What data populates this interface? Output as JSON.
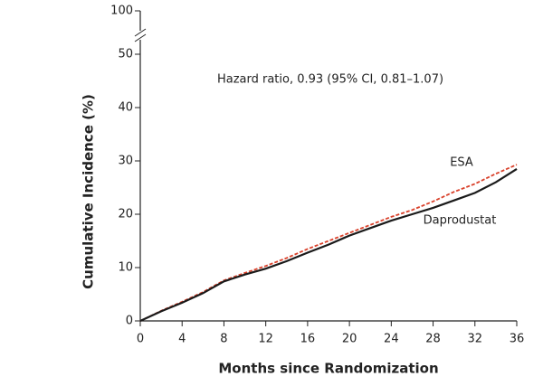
{
  "chart_data": {
    "type": "line",
    "annotation": "Hazard ratio, 0.93 (95% CI, 0.81–1.07)",
    "x_label": "Months since Randomization",
    "y_label": "Cumulative Incidence (%)",
    "x": [
      0,
      2,
      4,
      6,
      8,
      10,
      12,
      14,
      16,
      18,
      20,
      22,
      24,
      26,
      28,
      30,
      32,
      34,
      36
    ],
    "series": [
      {
        "name": "ESA",
        "color": "#d9412b",
        "dashed": true,
        "values": [
          0,
          1.9,
          3.6,
          5.4,
          7.6,
          9.0,
          10.3,
          11.8,
          13.5,
          15.0,
          16.5,
          18.0,
          19.5,
          20.8,
          22.4,
          24.2,
          25.7,
          27.6,
          29.3
        ]
      },
      {
        "name": "Daprodustat",
        "color": "#1a1a1a",
        "dashed": false,
        "values": [
          0,
          1.8,
          3.4,
          5.2,
          7.4,
          8.7,
          9.8,
          11.2,
          12.8,
          14.3,
          16.0,
          17.4,
          18.8,
          20.0,
          21.2,
          22.6,
          24.0,
          26.0,
          28.5
        ]
      }
    ],
    "xlim": [
      0,
      36
    ],
    "xticks": [
      0,
      4,
      8,
      12,
      16,
      20,
      24,
      28,
      32,
      36
    ],
    "ylim": [
      0,
      100
    ],
    "y_break": [
      50,
      100
    ],
    "yticks": [
      0,
      10,
      20,
      30,
      40,
      50,
      100
    ]
  }
}
